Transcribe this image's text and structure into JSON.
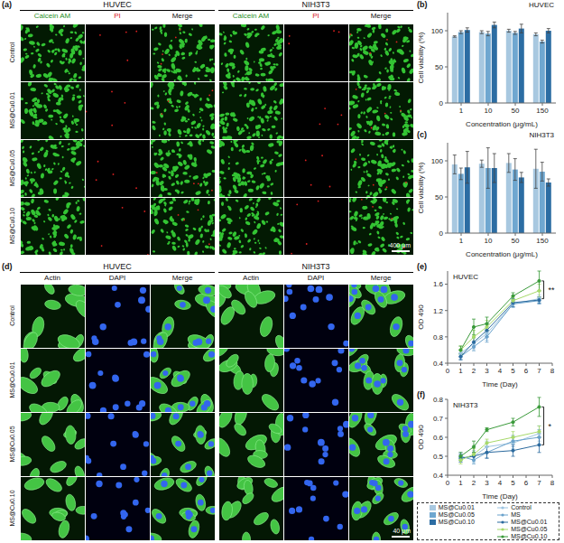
{
  "panels": [
    {
      "label": "(a)",
      "groups": [
        "HUVEC",
        "NIH3T3"
      ],
      "columns": [
        "Calcein AM",
        "PI",
        "Merge"
      ],
      "rows": [
        "Control",
        "MS@Cu0.01",
        "MS@Cu0.05",
        "MS@Cu0.10"
      ],
      "scale_bar": "400 μm"
    },
    {
      "label": "(d)",
      "groups": [
        "HUVEC",
        "NIH3T3"
      ],
      "columns": [
        "Actin",
        "DAPI",
        "Merge"
      ],
      "rows": [
        "Control",
        "MS@Cu0.01",
        "MS@Cu0.05",
        "MS@Cu0.10"
      ],
      "scale_bar": "40 μm"
    }
  ],
  "chart_data": [
    {
      "label": "(b)",
      "type": "bar",
      "title": "HUVEC",
      "x_label": "Concentration (μg/mL)",
      "y_label": "Cell viability (%)",
      "categories": [
        "1",
        "10",
        "50",
        "150"
      ],
      "ylim": [
        0,
        125
      ],
      "yticks": [
        0,
        50,
        100
      ],
      "series": [
        {
          "name": "MS@Cu0.01",
          "color": "#a8c8e0",
          "values": [
            92,
            98,
            100,
            95
          ],
          "errors": [
            1,
            2,
            2,
            2
          ]
        },
        {
          "name": "MS@Cu0.05",
          "color": "#6fa7d0",
          "values": [
            98,
            96,
            97,
            85
          ],
          "errors": [
            2,
            3,
            2,
            2
          ]
        },
        {
          "name": "MS@Cu0.10",
          "color": "#2c6da3",
          "values": [
            101,
            108,
            103,
            100
          ],
          "errors": [
            3,
            4,
            6,
            3
          ]
        }
      ]
    },
    {
      "label": "(c)",
      "type": "bar",
      "title": "NIH3T3",
      "x_label": "Concentration (μg/mL)",
      "y_label": "Cell viability (%)",
      "categories": [
        "1",
        "10",
        "50",
        "150"
      ],
      "ylim": [
        0,
        125
      ],
      "yticks": [
        0,
        50,
        100
      ],
      "series": [
        {
          "name": "MS@Cu0.01",
          "color": "#a8c8e0",
          "values": [
            95,
            96,
            97,
            89
          ],
          "errors": [
            13,
            5,
            13,
            27
          ]
        },
        {
          "name": "MS@Cu0.05",
          "color": "#6fa7d0",
          "values": [
            82,
            90,
            88,
            85
          ],
          "errors": [
            8,
            28,
            15,
            13
          ]
        },
        {
          "name": "MS@Cu0.10",
          "color": "#2c6da3",
          "values": [
            91,
            90,
            77,
            70
          ],
          "errors": [
            22,
            20,
            7,
            5
          ]
        }
      ]
    },
    {
      "label": "(e)",
      "type": "line",
      "title": "HUVEC",
      "x_label": "Time (Day)",
      "y_label": "OD 490",
      "x": [
        1,
        2,
        3,
        5,
        7
      ],
      "xlim": [
        0,
        8
      ],
      "xticks": [
        0,
        1,
        2,
        3,
        4,
        5,
        6,
        7,
        8
      ],
      "ylim": [
        0.4,
        1.8
      ],
      "yticks": [
        0.4,
        0.8,
        1.2,
        1.6
      ],
      "marker": "circle",
      "series": [
        {
          "name": "Control",
          "color": "#9bc3e0",
          "values": [
            0.55,
            0.7,
            0.85,
            1.3,
            1.38
          ],
          "errors": [
            0.05,
            0.08,
            0.1,
            0.05,
            0.06
          ]
        },
        {
          "name": "MS",
          "color": "#6aa2cc",
          "values": [
            0.5,
            0.65,
            0.8,
            1.3,
            1.35
          ],
          "errors": [
            0.04,
            0.06,
            0.08,
            0.05,
            0.05
          ]
        },
        {
          "name": "MS@Cu0.01",
          "color": "#2b6a9e",
          "values": [
            0.5,
            0.72,
            0.9,
            1.32,
            1.36
          ],
          "errors": [
            0.05,
            0.07,
            0.1,
            0.06,
            0.05
          ]
        },
        {
          "name": "MS@Cu0.05",
          "color": "#a6d96a",
          "values": [
            0.6,
            0.8,
            0.95,
            1.35,
            1.5
          ],
          "errors": [
            0.06,
            0.1,
            0.1,
            0.05,
            0.1
          ]
        },
        {
          "name": "MS@Cu0.10",
          "color": "#3a9a3a",
          "values": [
            0.6,
            0.95,
            1.0,
            1.42,
            1.65
          ],
          "errors": [
            0.06,
            0.12,
            0.1,
            0.05,
            0.15
          ]
        }
      ],
      "annotations": [
        {
          "text": "**",
          "x": 7,
          "between": [
            "MS@Cu0.10",
            "Control"
          ]
        }
      ]
    },
    {
      "label": "(f)",
      "type": "line",
      "title": "NIH3T3",
      "x_label": "Time (Day)",
      "y_label": "OD 490",
      "x": [
        1,
        2,
        3,
        5,
        7
      ],
      "xlim": [
        0,
        8
      ],
      "xticks": [
        0,
        1,
        2,
        3,
        4,
        5,
        6,
        7,
        8
      ],
      "ylim": [
        0.4,
        0.8
      ],
      "yticks": [
        0.4,
        0.5,
        0.6,
        0.7,
        0.8
      ],
      "marker": "circle",
      "series": [
        {
          "name": "Control",
          "color": "#9bc3e0",
          "values": [
            0.49,
            0.5,
            0.55,
            0.57,
            0.62
          ],
          "errors": [
            0.02,
            0.03,
            0.03,
            0.03,
            0.04
          ]
        },
        {
          "name": "MS",
          "color": "#6aa2cc",
          "values": [
            0.5,
            0.48,
            0.52,
            0.58,
            0.6
          ],
          "errors": [
            0.02,
            0.02,
            0.03,
            0.03,
            0.04
          ]
        },
        {
          "name": "MS@Cu0.01",
          "color": "#2b6a9e",
          "values": [
            0.49,
            0.5,
            0.52,
            0.53,
            0.56
          ],
          "errors": [
            0.02,
            0.02,
            0.03,
            0.03,
            0.04
          ]
        },
        {
          "name": "MS@Cu0.05",
          "color": "#a6d96a",
          "values": [
            0.48,
            0.51,
            0.57,
            0.6,
            0.63
          ],
          "errors": [
            0.02,
            0.03,
            0.02,
            0.03,
            0.03
          ]
        },
        {
          "name": "MS@Cu0.10",
          "color": "#3a9a3a",
          "values": [
            0.5,
            0.55,
            0.64,
            0.68,
            0.76
          ],
          "errors": [
            0.02,
            0.03,
            0.01,
            0.02,
            0.05
          ]
        }
      ],
      "annotations": [
        {
          "text": "*",
          "x": 7,
          "between": [
            "MS@Cu0.10",
            "MS@Cu0.01"
          ]
        }
      ]
    }
  ]
}
